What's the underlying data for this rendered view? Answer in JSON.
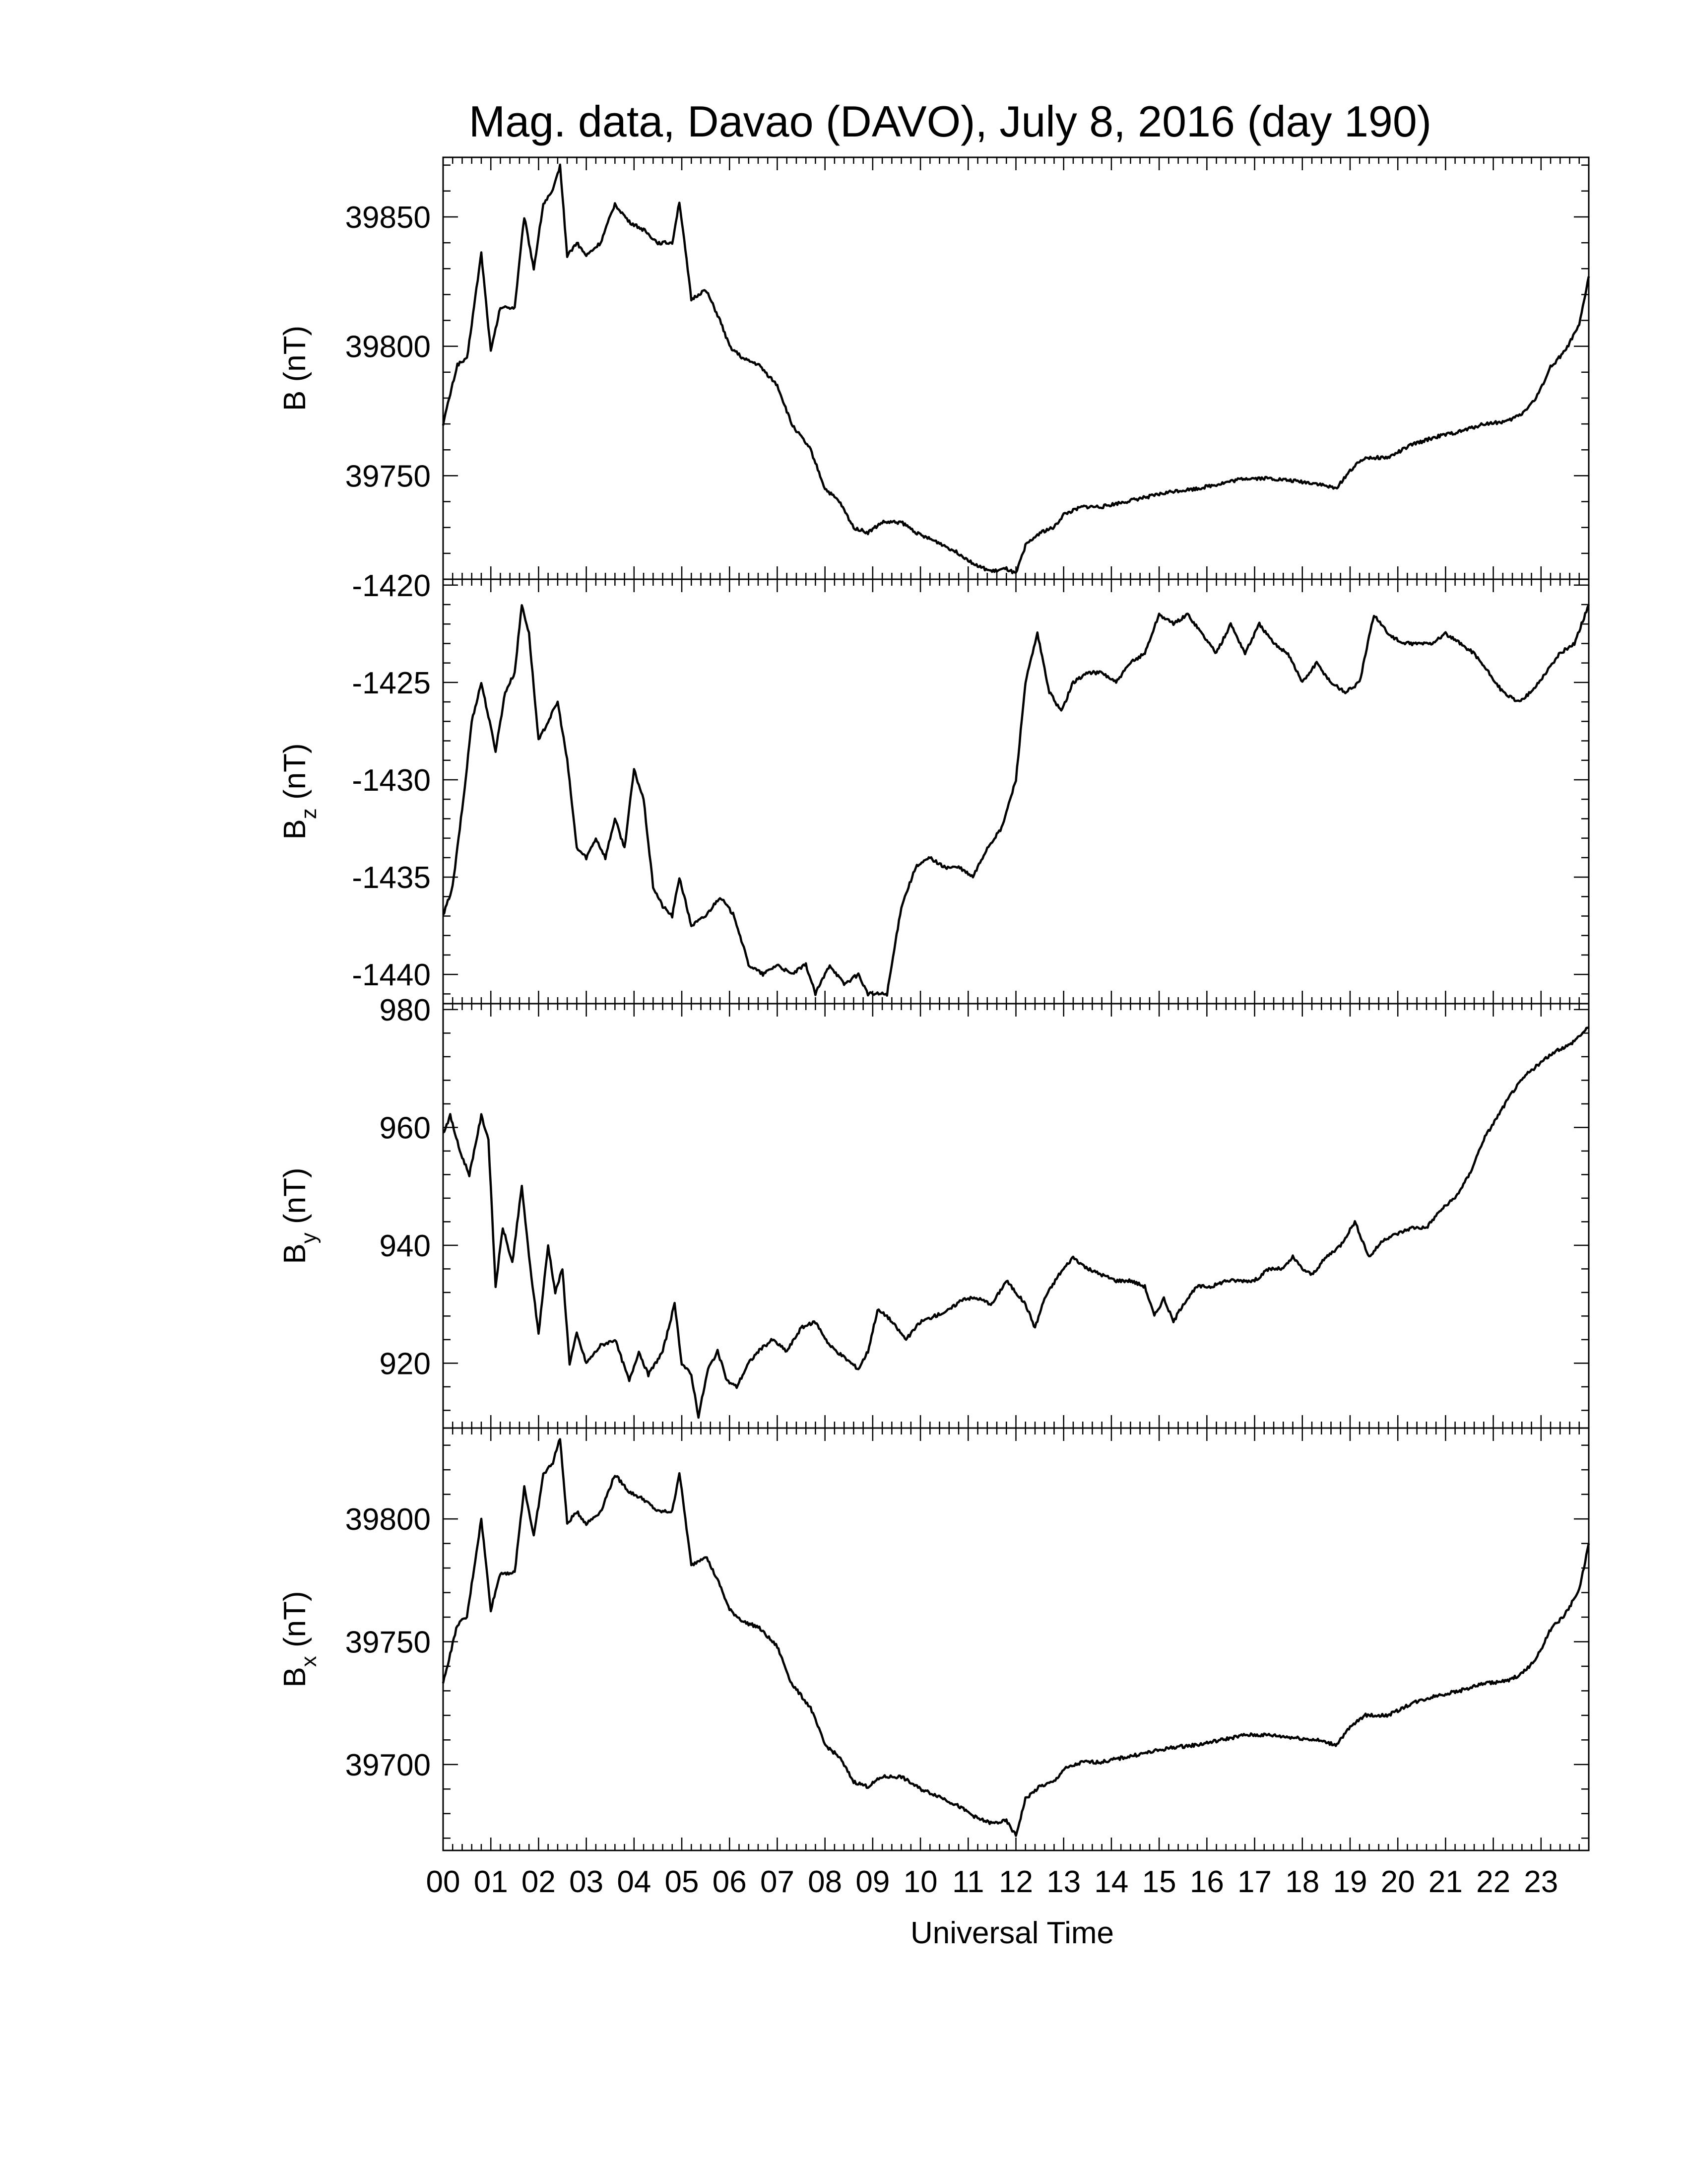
{
  "figure": {
    "title": "Mag. data, Davao (DAVO), July 8, 2016 (day 190)",
    "xlabel": "Universal Time",
    "line_color": "#000000",
    "background": "#ffffff"
  },
  "chart_data": [
    {
      "type": "line",
      "series_key": "B",
      "ylabel": {
        "main": "B",
        "sub": "",
        "unit": " (nT)"
      },
      "ylim": [
        39710,
        39873
      ],
      "yticks": [
        39750,
        39800,
        39850
      ],
      "xlim": [
        0,
        24
      ],
      "x": [
        0.0,
        0.3,
        0.5,
        0.8,
        1.0,
        1.2,
        1.5,
        1.7,
        1.9,
        2.1,
        2.3,
        2.45,
        2.6,
        2.8,
        3.0,
        3.3,
        3.6,
        3.9,
        4.2,
        4.5,
        4.8,
        4.95,
        5.2,
        5.5,
        5.8,
        6.0,
        6.3,
        6.6,
        7.0,
        7.3,
        7.7,
        8.0,
        8.3,
        8.6,
        8.9,
        9.2,
        9.6,
        10.0,
        10.4,
        10.8,
        11.2,
        11.5,
        11.8,
        12.0,
        12.2,
        12.5,
        12.8,
        13.0,
        13.4,
        13.8,
        14.3,
        14.8,
        15.3,
        15.8,
        16.3,
        16.8,
        17.3,
        17.8,
        18.3,
        18.7,
        19.0,
        19.3,
        19.8,
        20.3,
        20.8,
        21.3,
        21.8,
        22.3,
        22.6,
        22.9,
        23.2,
        23.5,
        23.8,
        24.0
      ],
      "values": [
        39770,
        39793,
        39795,
        39836,
        39798,
        39815,
        39815,
        39850,
        39830,
        39855,
        39860,
        39870,
        39835,
        39840,
        39835,
        39840,
        39855,
        39848,
        39845,
        39840,
        39840,
        39856,
        39818,
        39822,
        39810,
        39800,
        39795,
        39793,
        39785,
        39770,
        39760,
        39745,
        39740,
        39730,
        39728,
        39732,
        39732,
        39727,
        39724,
        39720,
        39715,
        39713,
        39714,
        39712,
        39723,
        39728,
        39730,
        39735,
        39738,
        39738,
        39740,
        39742,
        39744,
        39745,
        39747,
        39749,
        39749,
        39748,
        39747,
        39745,
        39752,
        39757,
        39757,
        39762,
        39765,
        39767,
        39770,
        39771,
        39774,
        39780,
        39792,
        39798,
        39808,
        39827
      ]
    },
    {
      "type": "line",
      "series_key": "Bz",
      "ylabel": {
        "main": "B",
        "sub": "z",
        "unit": " (nT)"
      },
      "ylim": [
        -1441.5,
        -1419.7
      ],
      "yticks": [
        -1420,
        -1425,
        -1430,
        -1435,
        -1440
      ],
      "xlim": [
        0,
        24
      ],
      "x": [
        0.0,
        0.2,
        0.45,
        0.6,
        0.8,
        1.1,
        1.3,
        1.5,
        1.65,
        1.8,
        2.0,
        2.2,
        2.4,
        2.6,
        2.8,
        3.0,
        3.2,
        3.4,
        3.6,
        3.8,
        4.0,
        4.2,
        4.4,
        4.6,
        4.8,
        4.95,
        5.2,
        5.5,
        5.8,
        6.1,
        6.4,
        6.7,
        7.0,
        7.3,
        7.6,
        7.8,
        8.1,
        8.4,
        8.7,
        8.9,
        9.1,
        9.3,
        9.6,
        9.9,
        10.2,
        10.5,
        10.8,
        11.1,
        11.4,
        11.7,
        12.0,
        12.2,
        12.45,
        12.7,
        12.95,
        13.2,
        13.5,
        13.8,
        14.1,
        14.4,
        14.7,
        15.0,
        15.3,
        15.6,
        15.9,
        16.2,
        16.5,
        16.8,
        17.1,
        17.4,
        17.7,
        18.0,
        18.3,
        18.6,
        18.9,
        19.2,
        19.5,
        19.8,
        20.1,
        20.4,
        20.7,
        21.0,
        21.3,
        21.6,
        21.9,
        22.2,
        22.5,
        22.8,
        23.1,
        23.4,
        23.7,
        24.0
      ],
      "values": [
        -1437,
        -1435.5,
        -1430.5,
        -1427,
        -1425,
        -1428.5,
        -1425.5,
        -1424.5,
        -1421,
        -1422.5,
        -1428,
        -1427,
        -1426,
        -1429,
        -1433.5,
        -1434,
        -1433,
        -1434,
        -1432,
        -1433.5,
        -1429.5,
        -1431,
        -1435.5,
        -1436.5,
        -1437,
        -1435,
        -1437.5,
        -1437,
        -1436,
        -1437,
        -1439.5,
        -1440,
        -1439.5,
        -1440,
        -1439.5,
        -1441,
        -1439.5,
        -1440.5,
        -1440,
        -1441,
        -1441,
        -1441,
        -1436.5,
        -1434.5,
        -1434,
        -1434.5,
        -1434.5,
        -1435,
        -1433.5,
        -1432.5,
        -1430,
        -1425,
        -1422.5,
        -1425.5,
        -1426.5,
        -1425,
        -1424.5,
        -1424.5,
        -1425,
        -1424,
        -1423.5,
        -1421.5,
        -1422,
        -1421.5,
        -1422.5,
        -1423.5,
        -1422,
        -1423.5,
        -1422,
        -1423,
        -1423.5,
        -1425,
        -1424,
        -1425,
        -1425.5,
        -1425,
        -1421.5,
        -1422.5,
        -1423,
        -1423,
        -1423,
        -1422.5,
        -1423,
        -1423.5,
        -1424.5,
        -1425.5,
        -1426,
        -1425.5,
        -1424.5,
        -1423.5,
        -1423,
        -1421
      ]
    },
    {
      "type": "line",
      "series_key": "By",
      "ylabel": {
        "main": "B",
        "sub": "y",
        "unit": " (nT)"
      },
      "ylim": [
        909,
        981
      ],
      "yticks": [
        920,
        940,
        960,
        980
      ],
      "xlim": [
        0,
        24
      ],
      "x": [
        0.0,
        0.15,
        0.35,
        0.55,
        0.8,
        0.95,
        1.1,
        1.25,
        1.45,
        1.65,
        1.8,
        2.0,
        2.2,
        2.35,
        2.5,
        2.65,
        2.8,
        3.0,
        3.3,
        3.6,
        3.9,
        4.1,
        4.3,
        4.6,
        4.85,
        5.0,
        5.2,
        5.35,
        5.55,
        5.75,
        5.95,
        6.15,
        6.4,
        6.6,
        6.9,
        7.2,
        7.5,
        7.8,
        8.1,
        8.4,
        8.7,
        8.9,
        9.1,
        9.3,
        9.5,
        9.7,
        10.0,
        10.3,
        10.6,
        10.9,
        11.2,
        11.5,
        11.8,
        12.0,
        12.2,
        12.4,
        12.6,
        12.9,
        13.2,
        13.5,
        13.8,
        14.1,
        14.4,
        14.7,
        14.9,
        15.1,
        15.3,
        15.5,
        15.8,
        16.1,
        16.4,
        16.7,
        17.0,
        17.3,
        17.6,
        17.8,
        18.0,
        18.2,
        18.5,
        18.8,
        19.1,
        19.4,
        19.7,
        20.0,
        20.3,
        20.6,
        20.9,
        21.2,
        21.5,
        21.8,
        22.1,
        22.4,
        22.7,
        23.0,
        23.3,
        23.6,
        24.0
      ],
      "values": [
        959,
        962,
        956,
        952,
        962,
        958,
        933,
        943,
        937,
        950,
        938,
        925,
        940,
        932,
        936,
        920,
        925,
        920,
        923,
        924,
        917,
        922,
        918,
        922,
        930,
        920,
        918,
        911,
        919,
        922,
        917,
        916,
        920,
        922,
        924,
        922,
        926,
        927,
        923,
        921,
        919,
        922,
        929,
        928,
        926,
        924,
        927,
        928,
        929,
        931,
        931,
        930,
        934,
        932,
        930,
        926,
        931,
        935,
        938,
        936,
        935,
        934,
        934,
        933,
        928,
        931,
        927,
        930,
        933,
        933,
        934,
        934,
        934,
        936,
        936,
        938,
        936,
        935,
        938,
        940,
        944,
        938,
        941,
        942,
        943,
        943,
        946,
        948,
        952,
        958,
        962,
        966,
        969,
        971,
        973,
        974,
        977
      ]
    },
    {
      "type": "line",
      "series_key": "Bx",
      "ylabel": {
        "main": "B",
        "sub": "x",
        "unit": " (nT)"
      },
      "ylim": [
        39665,
        39837
      ],
      "yticks": [
        39700,
        39750,
        39800
      ],
      "xlim": [
        0,
        24
      ],
      "x": [
        0.0,
        0.3,
        0.5,
        0.8,
        1.0,
        1.2,
        1.5,
        1.7,
        1.9,
        2.1,
        2.3,
        2.45,
        2.6,
        2.8,
        3.0,
        3.3,
        3.6,
        3.9,
        4.2,
        4.5,
        4.8,
        4.95,
        5.2,
        5.5,
        5.8,
        6.0,
        6.3,
        6.6,
        7.0,
        7.3,
        7.7,
        8.0,
        8.3,
        8.6,
        8.9,
        9.2,
        9.6,
        10.0,
        10.4,
        10.8,
        11.2,
        11.5,
        11.8,
        12.0,
        12.2,
        12.5,
        12.8,
        13.0,
        13.4,
        13.8,
        14.3,
        14.8,
        15.3,
        15.8,
        16.3,
        16.8,
        17.3,
        17.8,
        18.3,
        18.7,
        19.0,
        19.3,
        19.8,
        20.3,
        20.8,
        21.3,
        21.8,
        22.3,
        22.6,
        22.9,
        23.2,
        23.5,
        23.8,
        24.0
      ],
      "values": [
        39733,
        39757,
        39760,
        39800,
        39763,
        39778,
        39778,
        39813,
        39793,
        39818,
        39823,
        39833,
        39798,
        39803,
        39798,
        39803,
        39818,
        39811,
        39808,
        39803,
        39803,
        39819,
        39781,
        39785,
        39773,
        39763,
        39758,
        39756,
        39748,
        39733,
        39723,
        39708,
        39703,
        39693,
        39691,
        39695,
        39695,
        39690,
        39687,
        39683,
        39678,
        39676,
        39677,
        39671,
        39686,
        39691,
        39693,
        39698,
        39701,
        39701,
        39703,
        39705,
        39707,
        39708,
        39710,
        39712,
        39712,
        39711,
        39710,
        39708,
        39715,
        39720,
        39720,
        39725,
        39728,
        39730,
        39733,
        39734,
        39737,
        39743,
        39755,
        39761,
        39771,
        39790
      ]
    }
  ],
  "xaxis": {
    "tick_labels": [
      "00",
      "01",
      "02",
      "03",
      "04",
      "05",
      "06",
      "07",
      "08",
      "09",
      "10",
      "11",
      "12",
      "13",
      "14",
      "15",
      "16",
      "17",
      "18",
      "19",
      "20",
      "21",
      "22",
      "23"
    ],
    "tick_values": [
      0,
      1,
      2,
      3,
      4,
      5,
      6,
      7,
      8,
      9,
      10,
      11,
      12,
      13,
      14,
      15,
      16,
      17,
      18,
      19,
      20,
      21,
      22,
      23
    ],
    "minor_step": 0.2
  }
}
